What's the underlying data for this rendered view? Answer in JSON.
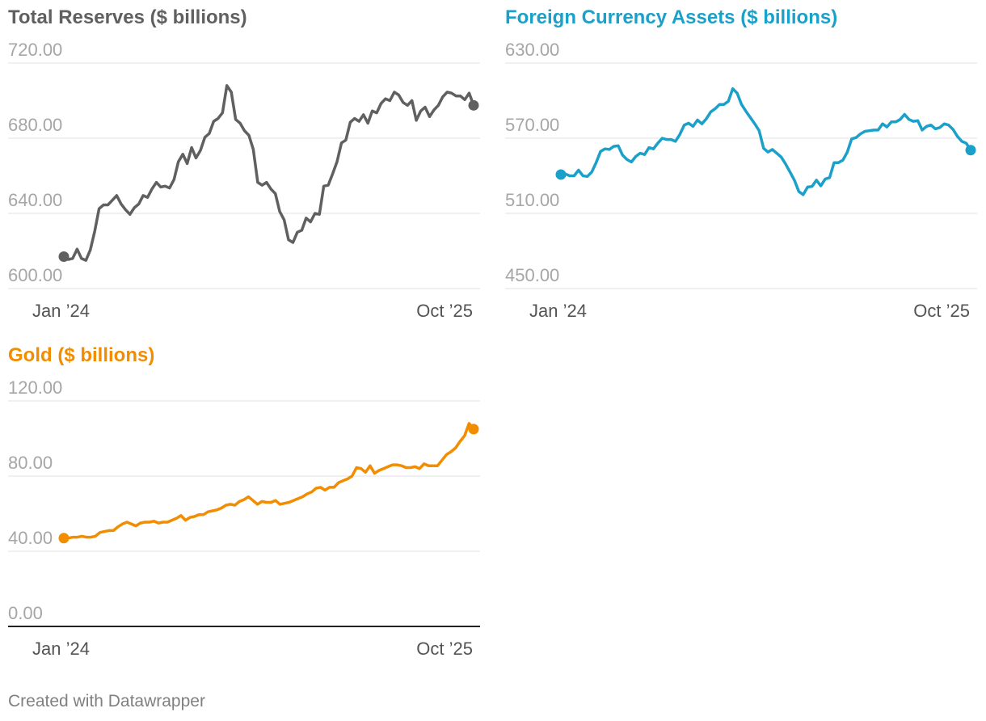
{
  "footer": "Created with Datawrapper",
  "chart_data": [
    {
      "type": "line",
      "title": "Total Reserves ($ billions)",
      "color": "#606060",
      "ylim": [
        600,
        720
      ],
      "yticks": [
        "720.00",
        "680.00",
        "640.00",
        "600.00"
      ],
      "ytick_values": [
        720,
        680,
        640,
        600
      ],
      "xticks": [
        "Jan ’24",
        "Oct ’25"
      ],
      "x_range": [
        "2024-01",
        "2025-10"
      ],
      "grid": true,
      "series": [
        {
          "values": [
            617,
            615.5,
            616,
            621,
            616,
            615,
            620.5,
            630.5,
            642.5,
            644.5,
            644.5,
            647,
            649.5,
            645,
            642,
            639.5,
            643,
            645,
            649.5,
            648.5,
            653,
            656.5,
            654,
            654.5,
            653.5,
            658,
            667.5,
            671.5,
            666.5,
            675,
            669.5,
            673.5,
            680.5,
            682.5,
            689,
            690.5,
            693.5,
            708,
            704.5,
            690,
            688,
            684,
            681.5,
            674,
            656.5,
            655,
            656.5,
            653,
            650.5,
            641,
            636.5,
            626,
            624.5,
            630,
            631,
            637.5,
            635.5,
            640,
            639.5,
            654.5,
            655,
            661,
            667.5,
            677.5,
            679,
            688.5,
            690.5,
            689,
            692.5,
            688,
            694.5,
            693.5,
            698.5,
            701,
            700,
            704.5,
            703,
            699,
            697.5,
            700,
            689.5,
            694.5,
            696.5,
            691.5,
            695,
            697.5,
            702,
            704.5,
            704,
            702.5,
            702.5,
            700.5,
            704,
            697.5
          ]
        }
      ]
    },
    {
      "type": "line",
      "title": "Foreign Currency Assets ($ billions)",
      "color": "#1aa0c9",
      "ylim": [
        450,
        630
      ],
      "yticks": [
        "630.00",
        "570.00",
        "510.00",
        "450.00"
      ],
      "ytick_values": [
        630,
        570,
        510,
        450
      ],
      "xticks": [
        "Jan ’24",
        "Oct ’25"
      ],
      "x_range": [
        "2024-01",
        "2025-10"
      ],
      "grid": true,
      "series": [
        {
          "values": [
            541,
            541.5,
            540,
            540,
            544.5,
            540,
            539.5,
            543,
            550.5,
            559.5,
            561.5,
            561,
            563.5,
            564,
            556.5,
            553,
            551,
            555.5,
            558,
            557,
            562.5,
            561.5,
            566,
            570,
            569,
            569,
            567.5,
            573,
            580.5,
            582,
            579.5,
            584.5,
            581.5,
            585.5,
            591,
            593.5,
            597,
            597,
            599.5,
            609.5,
            606,
            597,
            591.5,
            586.5,
            581.5,
            576,
            562,
            559,
            561,
            558,
            555,
            549.5,
            543,
            536.5,
            527.5,
            525,
            531,
            531.5,
            536.5,
            532,
            537.5,
            538.5,
            550.5,
            550.5,
            552.5,
            559,
            569.5,
            570.5,
            573.5,
            575.5,
            576,
            576.5,
            576.5,
            581.5,
            579,
            583,
            583,
            585,
            589,
            585,
            583.5,
            584,
            576.5,
            579.5,
            580.5,
            577.5,
            578.5,
            581.5,
            580.5,
            577,
            571.5,
            567.5,
            566,
            560.5
          ]
        }
      ]
    },
    {
      "type": "line",
      "title": "Gold ($ billions)",
      "color": "#f28c00",
      "ylim": [
        0,
        120
      ],
      "yticks": [
        "120.00",
        "80.00",
        "40.00",
        "0.00"
      ],
      "ytick_values": [
        120,
        80,
        40,
        0
      ],
      "xticks": [
        "Jan ’24",
        "Oct ’25"
      ],
      "x_range": [
        "2024-01",
        "2025-10"
      ],
      "grid": true,
      "series": [
        {
          "values": [
            47,
            47,
            47.5,
            47.5,
            48,
            47.5,
            47.5,
            48,
            50,
            50.5,
            51,
            51,
            53,
            54.5,
            55.5,
            54.5,
            53.5,
            55,
            55.5,
            55.5,
            56,
            55,
            55.5,
            55.5,
            56.5,
            57.5,
            59,
            56.5,
            58,
            58.5,
            59.5,
            59.5,
            61,
            61.5,
            62,
            63,
            64.5,
            65,
            64.5,
            66.5,
            67.5,
            69,
            67,
            65,
            66.5,
            66,
            66,
            67,
            65,
            65.5,
            66,
            67,
            68,
            69,
            70.5,
            71.5,
            73.5,
            74,
            72.5,
            74,
            74,
            76.5,
            77.5,
            78.5,
            80,
            84.5,
            84,
            82,
            85.5,
            81.5,
            83,
            84,
            85,
            86,
            86,
            85.5,
            84.5,
            84.5,
            85,
            84,
            86.5,
            85.5,
            85.5,
            85.5,
            88.5,
            91.5,
            93,
            95,
            98.5,
            101.5,
            108,
            105
          ]
        }
      ]
    }
  ]
}
